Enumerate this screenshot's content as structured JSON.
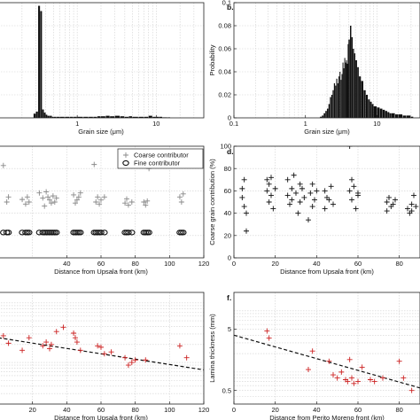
{
  "chart_data": [
    {
      "type": "bar",
      "panel_label": "",
      "xlabel": "Grain size (μm)",
      "ylabel": "",
      "xscale": "log",
      "xlim": [
        0.1,
        40
      ],
      "ylim": [
        0,
        0.11
      ],
      "xtick_labels": [
        "1",
        "10"
      ],
      "xticks": [
        1,
        10
      ],
      "yticks": [],
      "grid": true,
      "color": "#111111",
      "x": [
        0.28,
        0.3,
        0.32,
        0.34,
        0.36,
        0.38,
        0.4,
        0.42,
        0.44,
        0.46,
        0.48,
        0.5,
        0.55,
        0.6,
        0.7,
        0.8,
        0.9,
        1.0,
        1.2,
        1.4,
        1.6,
        1.8,
        2.0,
        2.3,
        2.6,
        3.0,
        3.5,
        4.0,
        4.5,
        5.0,
        6.0,
        7.0,
        8.0,
        9.0,
        10.0,
        11,
        12,
        14
      ],
      "values": [
        0.004,
        0.006,
        0.107,
        0.102,
        0.008,
        0.005,
        0.003,
        0.002,
        0.002,
        0.002,
        0.001,
        0.001,
        0.001,
        0.001,
        0.001,
        0.001,
        0.001,
        0.001,
        0.001,
        0.001,
        0.001,
        0.0015,
        0.0015,
        0.002,
        0.0015,
        0.002,
        0.0015,
        0.001,
        0.0015,
        0.001,
        0.001,
        0.001,
        0.002,
        0.001,
        0.001,
        0.001,
        0.0005,
        0.0005
      ]
    },
    {
      "type": "bar",
      "panel_label": "b.",
      "xlabel": "Grain size (μm)",
      "ylabel": "Probability",
      "xscale": "log",
      "xlim": [
        0.1,
        40
      ],
      "ylim": [
        0,
        0.1
      ],
      "xtick_labels": [
        "0.1",
        "1",
        "10"
      ],
      "xticks": [
        0.1,
        1,
        10
      ],
      "ytick_labels": [
        "0",
        "0.02",
        "0.04",
        "0.06",
        "0.08",
        "0.1"
      ],
      "yticks": [
        0,
        0.02,
        0.04,
        0.06,
        0.08,
        0.1
      ],
      "grid": true,
      "color": "#111111",
      "x": [
        1.6,
        1.7,
        1.8,
        1.9,
        2.0,
        2.1,
        2.2,
        2.3,
        2.4,
        2.5,
        2.6,
        2.7,
        2.8,
        2.9,
        3.0,
        3.1,
        3.2,
        3.3,
        3.4,
        3.5,
        3.6,
        3.7,
        3.8,
        3.9,
        4.0,
        4.2,
        4.4,
        4.6,
        4.8,
        5.0,
        5.3,
        5.6,
        6.0,
        6.5,
        7.0,
        7.5,
        8.0,
        8.5,
        9.0,
        10,
        11,
        12,
        13,
        14,
        15,
        16,
        18,
        20,
        23,
        26,
        30
      ],
      "values": [
        0.001,
        0.002,
        0.004,
        0.006,
        0.008,
        0.012,
        0.018,
        0.02,
        0.024,
        0.03,
        0.028,
        0.034,
        0.03,
        0.036,
        0.04,
        0.033,
        0.038,
        0.048,
        0.043,
        0.052,
        0.048,
        0.05,
        0.047,
        0.064,
        0.068,
        0.08,
        0.07,
        0.06,
        0.056,
        0.05,
        0.044,
        0.036,
        0.032,
        0.024,
        0.02,
        0.016,
        0.014,
        0.012,
        0.01,
        0.009,
        0.008,
        0.007,
        0.006,
        0.005,
        0.004,
        0.004,
        0.003,
        0.003,
        0.002,
        0.002,
        0.001
      ]
    },
    {
      "type": "scatter",
      "panel_label": "",
      "xlabel": "Distance from Upsala front (km)",
      "ylabel": "",
      "xlim": [
        0,
        120
      ],
      "ylim": [
        0,
        22
      ],
      "xtick_labels": [
        "40",
        "60",
        "80",
        "100",
        "120"
      ],
      "xticks": [
        40,
        60,
        80,
        100,
        120
      ],
      "yticks": [],
      "grid": true,
      "legend_position": "top-right",
      "series": [
        {
          "name": "Coarse contributor",
          "marker": "plus",
          "color": "#888888",
          "x": [
            3,
            5,
            6,
            14,
            16,
            17,
            18,
            24,
            26,
            27,
            28,
            29,
            30,
            31,
            32,
            33,
            34,
            44,
            45,
            46,
            47,
            48,
            56,
            57,
            58,
            59,
            60,
            62,
            74,
            75,
            76,
            78,
            85,
            86,
            87,
            88,
            106,
            107,
            108
          ],
          "y": [
            18.2,
            11,
            12,
            11.5,
            10.6,
            12,
            11,
            12.8,
            11.8,
            10.2,
            13,
            12,
            11.4,
            10.8,
            12.2,
            11,
            11.8,
            12.4,
            10.8,
            11.4,
            12,
            12.8,
            18.4,
            11,
            12,
            10.6,
            11.4,
            12,
            10.8,
            11.6,
            10.4,
            11,
            11,
            10.4,
            11.2,
            17.6,
            12,
            11,
            12.6
          ]
        },
        {
          "name": "Fine contributor",
          "marker": "circle",
          "color": "#111111",
          "x": [
            3,
            5,
            6,
            14,
            16,
            17,
            18,
            24,
            26,
            27,
            28,
            29,
            30,
            31,
            32,
            33,
            34,
            44,
            45,
            46,
            47,
            48,
            56,
            57,
            58,
            59,
            60,
            62,
            74,
            75,
            76,
            78,
            85,
            86,
            87,
            88,
            106,
            107,
            108
          ],
          "y": [
            5,
            5,
            5,
            5,
            5,
            5,
            5,
            5,
            5,
            5,
            5,
            5,
            5,
            5,
            5,
            5,
            5,
            5,
            5,
            5,
            5,
            5,
            5,
            5,
            5,
            5,
            5,
            5,
            5,
            5,
            5,
            5,
            5,
            5,
            5,
            5,
            5,
            5,
            5
          ]
        }
      ]
    },
    {
      "type": "scatter",
      "panel_label": "d.",
      "xlabel": "Distance from Upsala front (km)",
      "ylabel": "Coarse grain contribution (%)",
      "xlim": [
        0,
        90
      ],
      "ylim": [
        0,
        100
      ],
      "xtick_labels": [
        "0",
        "20",
        "40",
        "60",
        "80"
      ],
      "xticks": [
        0,
        20,
        40,
        60,
        80
      ],
      "ytick_labels": [
        "0",
        "20",
        "40",
        "60",
        "80",
        "100"
      ],
      "yticks": [
        0,
        20,
        40,
        60,
        80,
        100
      ],
      "grid": true,
      "series": [
        {
          "name": "",
          "marker": "plus",
          "color": "#111111",
          "x": [
            4,
            4,
            5,
            5,
            6,
            6,
            16,
            16,
            17,
            17,
            18,
            18,
            19,
            20,
            26,
            26,
            27,
            28,
            28,
            29,
            30,
            31,
            32,
            32,
            33,
            34,
            36,
            37,
            38,
            38,
            39,
            40,
            44,
            44,
            45,
            46,
            47,
            48,
            56,
            56,
            57,
            57,
            58,
            59,
            60,
            60,
            74,
            74,
            75,
            76,
            77,
            78,
            84,
            85,
            86,
            86,
            87,
            88
          ],
          "y": [
            54,
            62,
            46,
            70,
            24,
            40,
            60,
            70,
            50,
            66,
            56,
            72,
            44,
            62,
            56,
            70,
            48,
            62,
            52,
            74,
            58,
            40,
            66,
            50,
            62,
            54,
            34,
            58,
            66,
            46,
            52,
            60,
            60,
            44,
            54,
            52,
            64,
            48,
            100,
            60,
            70,
            52,
            64,
            44,
            58,
            56,
            50,
            42,
            54,
            46,
            48,
            52,
            44,
            40,
            48,
            42,
            56,
            46
          ]
        }
      ]
    },
    {
      "type": "scatter",
      "panel_label": "",
      "xlabel": "Distance from Upsala front (km)",
      "ylabel": "",
      "xlim": [
        0,
        120
      ],
      "ylim": [
        0.2,
        15
      ],
      "yscale": "log",
      "xtick_labels": [
        "20",
        "40",
        "60",
        "80",
        "100",
        "120"
      ],
      "xticks": [
        20,
        40,
        60,
        80,
        100,
        120
      ],
      "yticks": [],
      "grid": true,
      "series": [
        {
          "name": "",
          "marker": "plus",
          "color": "#cc2222",
          "x": [
            3,
            6,
            14,
            18,
            26,
            28,
            30,
            31,
            34,
            38,
            44,
            45,
            46,
            48,
            58,
            60,
            62,
            66,
            74,
            76,
            78,
            80,
            86,
            106,
            110
          ],
          "y": [
            2.8,
            2.1,
            1.6,
            2.6,
            1.9,
            2.2,
            1.7,
            2.0,
            3.3,
            3.9,
            3.1,
            2.6,
            2.2,
            1.6,
            1.9,
            1.8,
            1.4,
            1.5,
            1.2,
            0.9,
            1.0,
            1.1,
            1.1,
            1.9,
            1.2
          ]
        }
      ],
      "trend_line": {
        "x": [
          0,
          120
        ],
        "y": [
          2.6,
          0.75
        ],
        "style": "dashed",
        "color": "#111111"
      }
    },
    {
      "type": "scatter",
      "panel_label": "f.",
      "xlabel": "Distance from Perito Moreno front (km)",
      "ylabel": "Lamina thickness (mm)",
      "xlim": [
        0,
        90
      ],
      "ylim": [
        0.3,
        20
      ],
      "yscale": "log",
      "xtick_labels": [
        "0",
        "20",
        "40",
        "60",
        "80"
      ],
      "xticks": [
        0,
        20,
        40,
        60,
        80
      ],
      "ytick_labels": [
        "0.5",
        "5"
      ],
      "yticks": [
        0.5,
        5
      ],
      "grid": true,
      "series": [
        {
          "name": "",
          "marker": "plus",
          "color": "#cc2222",
          "x": [
            16,
            17,
            36,
            38,
            46,
            48,
            50,
            52,
            54,
            55,
            56,
            57,
            58,
            60,
            62,
            66,
            68,
            72,
            80,
            82,
            86
          ],
          "y": [
            4.7,
            3.6,
            1.1,
            2.2,
            1.5,
            0.9,
            0.8,
            1.0,
            0.75,
            0.7,
            1.6,
            0.8,
            0.65,
            0.7,
            1.2,
            0.75,
            0.7,
            0.8,
            1.5,
            0.8,
            0.5
          ]
        }
      ],
      "trend_line": {
        "x": [
          0,
          90
        ],
        "y": [
          4.0,
          0.55
        ],
        "style": "dashed",
        "color": "#111111"
      }
    }
  ]
}
